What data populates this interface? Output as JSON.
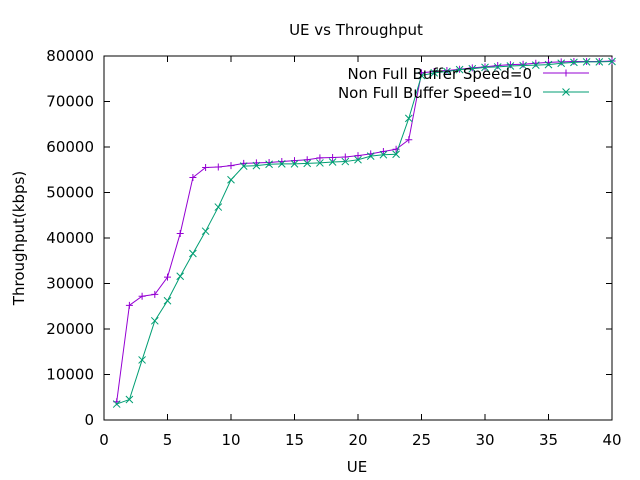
{
  "chart_data": {
    "type": "line",
    "title": "UE vs Throughput",
    "xlabel": "UE",
    "ylabel": "Throughput(kbps)",
    "xlim": [
      0,
      40
    ],
    "ylim": [
      0,
      80000
    ],
    "xticks": [
      0,
      5,
      10,
      15,
      20,
      25,
      30,
      35,
      40
    ],
    "yticks": [
      0,
      10000,
      20000,
      30000,
      40000,
      50000,
      60000,
      70000,
      80000
    ],
    "grid": false,
    "legend_position": "top-right",
    "x": [
      1,
      2,
      3,
      4,
      5,
      6,
      7,
      8,
      9,
      10,
      11,
      12,
      13,
      14,
      15,
      16,
      17,
      18,
      19,
      20,
      21,
      22,
      23,
      24,
      25,
      26,
      27,
      28,
      29,
      30,
      31,
      32,
      33,
      34,
      35,
      36,
      37,
      38,
      39,
      40
    ],
    "series": [
      {
        "name": "Non Full Buffer Speed=0",
        "color": "#9400d3",
        "marker": "plus",
        "values": [
          4000,
          25200,
          27200,
          27600,
          31400,
          41000,
          53300,
          55500,
          55600,
          55900,
          56400,
          56500,
          56600,
          56800,
          57000,
          57200,
          57600,
          57700,
          57800,
          58100,
          58500,
          59000,
          59500,
          61600,
          76300,
          76600,
          76800,
          77100,
          77400,
          77600,
          77900,
          78100,
          78200,
          78400,
          78600,
          78700,
          78800,
          78800,
          78800,
          78900
        ]
      },
      {
        "name": "Non Full Buffer Speed=10",
        "color": "#009e73",
        "marker": "x",
        "values": [
          3500,
          4500,
          13200,
          21800,
          26200,
          31600,
          36600,
          41500,
          46800,
          52800,
          55800,
          55900,
          56200,
          56300,
          56300,
          56400,
          56500,
          56700,
          56800,
          57200,
          58000,
          58300,
          58400,
          66300,
          75700,
          76300,
          76600,
          77000,
          77200,
          77500,
          77600,
          77800,
          77900,
          78000,
          78100,
          78400,
          78600,
          78700,
          78700,
          78800
        ]
      }
    ]
  }
}
